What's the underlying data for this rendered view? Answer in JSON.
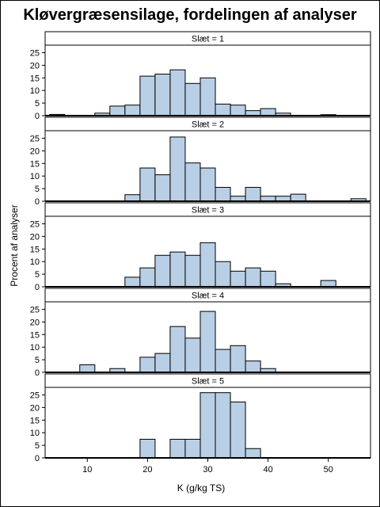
{
  "chart_data": {
    "type": "bar",
    "title": "Kløvergræsensilage, fordelingen af analyser",
    "xlabel": "K (g/kg TS)",
    "ylabel": "Procent af analyser",
    "xlim": [
      3,
      57
    ],
    "x_ticks": [
      10,
      20,
      30,
      40,
      50
    ],
    "ylim": [
      0,
      28
    ],
    "y_ticks": [
      0,
      5,
      10,
      15,
      20,
      25
    ],
    "bin_width": 2.5,
    "bar_color": "#b9cfe6",
    "edge_color": "#000000",
    "panels": [
      {
        "label": "Slæt = 1",
        "bins": [
          {
            "start": 3.75,
            "value": 0.5
          },
          {
            "start": 11.25,
            "value": 1.0
          },
          {
            "start": 13.75,
            "value": 3.8
          },
          {
            "start": 16.25,
            "value": 4.2
          },
          {
            "start": 18.75,
            "value": 15.7
          },
          {
            "start": 21.25,
            "value": 16.5
          },
          {
            "start": 23.75,
            "value": 18.2
          },
          {
            "start": 26.25,
            "value": 12.8
          },
          {
            "start": 28.75,
            "value": 15.0
          },
          {
            "start": 31.25,
            "value": 4.6
          },
          {
            "start": 33.75,
            "value": 4.2
          },
          {
            "start": 36.25,
            "value": 2.0
          },
          {
            "start": 38.75,
            "value": 2.8
          },
          {
            "start": 41.25,
            "value": 1.0
          },
          {
            "start": 48.75,
            "value": 0.4
          }
        ]
      },
      {
        "label": "Slæt = 2",
        "bins": [
          {
            "start": 16.25,
            "value": 2.6
          },
          {
            "start": 18.75,
            "value": 13.2
          },
          {
            "start": 21.25,
            "value": 10.5
          },
          {
            "start": 23.75,
            "value": 25.5
          },
          {
            "start": 26.25,
            "value": 15.2
          },
          {
            "start": 28.75,
            "value": 13.2
          },
          {
            "start": 31.25,
            "value": 5.5
          },
          {
            "start": 33.75,
            "value": 2.0
          },
          {
            "start": 36.25,
            "value": 5.5
          },
          {
            "start": 38.75,
            "value": 2.0
          },
          {
            "start": 41.25,
            "value": 2.0
          },
          {
            "start": 43.75,
            "value": 2.8
          },
          {
            "start": 53.75,
            "value": 1.0
          }
        ]
      },
      {
        "label": "Slæt = 3",
        "bins": [
          {
            "start": 16.25,
            "value": 3.8
          },
          {
            "start": 18.75,
            "value": 7.5
          },
          {
            "start": 21.25,
            "value": 12.5
          },
          {
            "start": 23.75,
            "value": 13.8
          },
          {
            "start": 26.25,
            "value": 12.5
          },
          {
            "start": 28.75,
            "value": 17.5
          },
          {
            "start": 31.25,
            "value": 10.0
          },
          {
            "start": 33.75,
            "value": 6.2
          },
          {
            "start": 36.25,
            "value": 7.5
          },
          {
            "start": 38.75,
            "value": 6.2
          },
          {
            "start": 41.25,
            "value": 1.2
          },
          {
            "start": 48.75,
            "value": 2.5
          }
        ]
      },
      {
        "label": "Slæt = 4",
        "bins": [
          {
            "start": 8.75,
            "value": 3.0
          },
          {
            "start": 13.75,
            "value": 1.5
          },
          {
            "start": 18.75,
            "value": 6.0
          },
          {
            "start": 21.25,
            "value": 7.5
          },
          {
            "start": 23.75,
            "value": 18.2
          },
          {
            "start": 26.25,
            "value": 13.6
          },
          {
            "start": 28.75,
            "value": 24.2
          },
          {
            "start": 31.25,
            "value": 9.1
          },
          {
            "start": 33.75,
            "value": 10.6
          },
          {
            "start": 36.25,
            "value": 4.5
          },
          {
            "start": 38.75,
            "value": 1.5
          }
        ]
      },
      {
        "label": "Slæt = 5",
        "bins": [
          {
            "start": 18.75,
            "value": 7.4
          },
          {
            "start": 23.75,
            "value": 7.4
          },
          {
            "start": 26.25,
            "value": 7.4
          },
          {
            "start": 28.75,
            "value": 25.9
          },
          {
            "start": 31.25,
            "value": 25.9
          },
          {
            "start": 33.75,
            "value": 22.2
          },
          {
            "start": 36.25,
            "value": 3.7
          }
        ]
      }
    ]
  }
}
